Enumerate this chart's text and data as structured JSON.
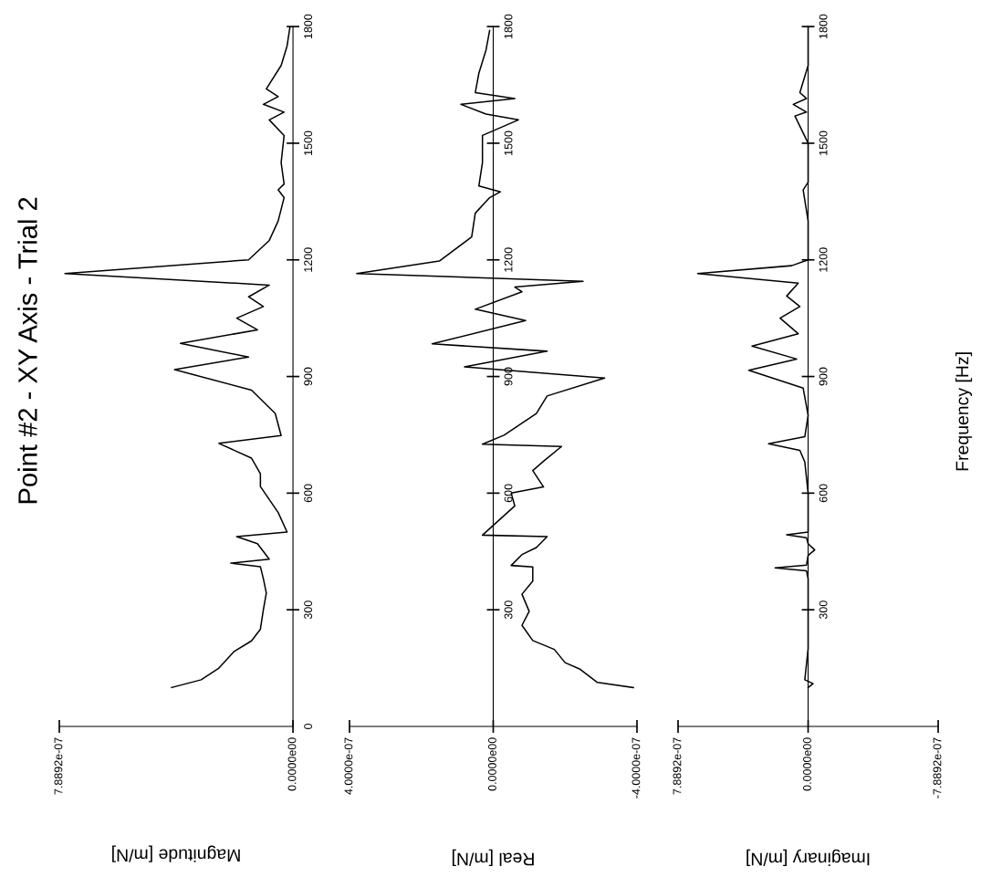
{
  "chart_data": [
    {
      "type": "line",
      "orientation": "horizontal",
      "title": "Point #2 - XY Axis - Trial 2",
      "xlabel": "Magnitude [m/N]",
      "color": "#000000",
      "x": [
        100,
        120,
        150,
        192,
        220,
        250,
        300,
        343,
        380,
        411,
        420,
        430,
        470,
        488,
        500,
        550,
        617,
        650,
        690,
        728,
        748,
        805,
        865,
        918,
        950,
        985,
        1020,
        1050,
        1080,
        1105,
        1135,
        1165,
        1200,
        1250,
        1300,
        1360,
        1380,
        1395,
        1450,
        1520,
        1560,
        1580,
        1600,
        1620,
        1640,
        1700,
        1750,
        1800
      ],
      "values": [
        4.1e-07,
        3.1e-07,
        2.5e-07,
        2e-07,
        1.4e-07,
        1.1e-07,
        1e-07,
        9e-08,
        1e-07,
        1.1e-07,
        2.1e-07,
        8e-08,
        1.2e-07,
        1.9e-07,
        2e-08,
        5e-08,
        1.1e-07,
        1.1e-07,
        1.4e-07,
        2.5e-07,
        4e-08,
        6e-08,
        1.4e-07,
        4e-07,
        1.5e-07,
        3.8e-07,
        1.2e-07,
        1.9e-07,
        1e-07,
        1.5e-07,
        8e-08,
        7.7e-07,
        1.5e-07,
        8e-08,
        5e-08,
        3e-08,
        5e-08,
        3e-08,
        4e-08,
        3e-08,
        8e-08,
        3e-08,
        1e-07,
        5e-08,
        9e-08,
        4e-08,
        2e-08,
        1e-08
      ],
      "xlim": [
        7.8892e-07,
        0
      ],
      "xticks": [
        {
          "value": 7.8892e-07,
          "label": "7.8892e-07"
        },
        {
          "value": 0,
          "label": "0.0000e00"
        }
      ],
      "ylim": [
        0,
        1800
      ],
      "yticks": [
        0,
        300,
        600,
        900,
        1200,
        1500,
        1800
      ]
    },
    {
      "type": "line",
      "orientation": "horizontal",
      "xlabel": "Real [m/N]",
      "color": "#000000",
      "x": [
        100,
        113,
        148,
        164,
        198,
        221,
        260,
        296,
        340,
        374,
        410,
        414,
        442,
        460,
        488,
        492,
        567,
        600,
        616,
        658,
        682,
        720,
        726,
        749,
        805,
        850,
        896,
        925,
        965,
        984,
        1044,
        1073,
        1118,
        1130,
        1145,
        1165,
        1197,
        1259,
        1320,
        1360,
        1375,
        1390,
        1450,
        1520,
        1560,
        1575,
        1600,
        1615,
        1630,
        1680,
        1740,
        1790
      ],
      "values": [
        -3.9e-07,
        -2.9e-07,
        -2.4e-07,
        -2e-07,
        -1.7e-07,
        -1.1e-07,
        -8e-08,
        -1e-07,
        -8e-08,
        -1.1e-07,
        -1.1e-07,
        -5e-08,
        -8e-08,
        -1.2e-07,
        -1.5e-07,
        3e-08,
        -6e-08,
        -5e-08,
        -1.4e-07,
        -1.1e-07,
        -1.4e-07,
        -1.9e-07,
        3e-08,
        -3e-08,
        -1.2e-07,
        -1.5e-07,
        -3.1e-07,
        8e-08,
        -1.5e-07,
        1.7e-07,
        -9e-08,
        5e-08,
        -8e-08,
        -6e-08,
        -2.5e-07,
        3.8e-07,
        1.5e-07,
        6e-08,
        5e-08,
        1e-08,
        -2e-08,
        4e-08,
        3e-08,
        3e-08,
        -7e-08,
        2e-08,
        9e-08,
        -6e-08,
        5e-08,
        4e-08,
        2e-08,
        1e-08
      ],
      "xlim": [
        4e-07,
        -4e-07
      ],
      "xticks": [
        {
          "value": 4e-07,
          "label": "4.0000e-07"
        },
        {
          "value": 0,
          "label": "0.0000e00"
        },
        {
          "value": -4e-07,
          "label": "-4.0000e-07"
        }
      ],
      "ylim": [
        0,
        1800
      ],
      "yticks": [
        300,
        600,
        900,
        1200,
        1500,
        1800
      ]
    },
    {
      "type": "line",
      "orientation": "horizontal",
      "xlabel": "Imaginary [m/N]",
      "ylabel": "Frequency [Hz]",
      "color": "#000000",
      "x": [
        100,
        110,
        120,
        200,
        300,
        380,
        400,
        408,
        415,
        440,
        454,
        470,
        485,
        493,
        500,
        600,
        680,
        710,
        727,
        745,
        800,
        870,
        916,
        945,
        978,
        1010,
        1050,
        1080,
        1107,
        1140,
        1165,
        1185,
        1200,
        1300,
        1380,
        1400,
        1500,
        1570,
        1580,
        1600,
        1615,
        1630,
        1700,
        1800
      ],
      "values": [
        0,
        -3e-08,
        2e-08,
        0,
        0,
        0,
        1e-08,
        2e-07,
        1e-08,
        0,
        -4e-08,
        0,
        1e-08,
        1.3e-07,
        0,
        0,
        2e-08,
        5e-08,
        2.4e-07,
        2e-08,
        0,
        3e-08,
        3.6e-07,
        7e-08,
        3.4e-07,
        6e-08,
        1.7e-07,
        5e-08,
        1.3e-07,
        6e-08,
        6.7e-07,
        1e-07,
        0,
        0,
        3e-08,
        0,
        0,
        8e-08,
        1e-08,
        9e-08,
        1e-08,
        5e-08,
        0,
        0
      ],
      "xlim": [
        7.8892e-07,
        -7.8892e-07
      ],
      "xticks": [
        {
          "value": 7.8892e-07,
          "label": "7.8892e-07"
        },
        {
          "value": 0,
          "label": "0.0000e00"
        },
        {
          "value": -7.8892e-07,
          "label": "-7.8892e-07"
        }
      ],
      "ylim": [
        0,
        1800
      ],
      "yticks": [
        300,
        600,
        900,
        1200,
        1500,
        1800
      ]
    }
  ]
}
